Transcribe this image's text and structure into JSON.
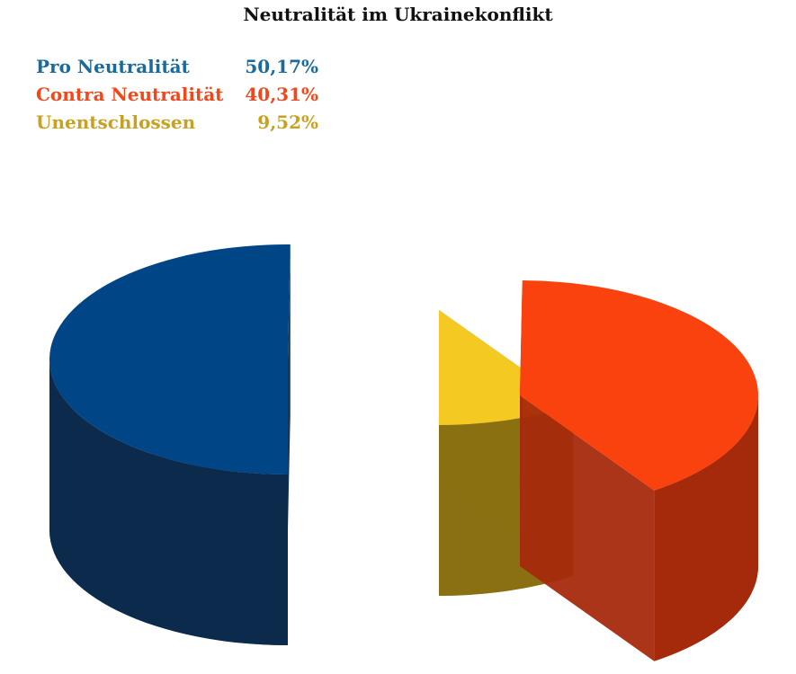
{
  "chart_data": {
    "type": "pie",
    "title": "Neutralität im Ukrainekonflikt",
    "series": [
      {
        "name": "Pro Neutralität",
        "label": "50,17%",
        "value": 50.17,
        "color": "#004585",
        "side_color": "#0b2a4c",
        "legend_color": "#1a6a9a"
      },
      {
        "name": "Contra Neutralität",
        "label": "40,31%",
        "value": 40.31,
        "color": "#fa420f",
        "side_color": "#a52a0c",
        "legend_color": "#f2461b"
      },
      {
        "name": "Unentschlossen",
        "label": "9,52%",
        "value": 9.52,
        "color": "#f4ca22",
        "side_color": "#8a7012",
        "legend_color": "#c9a020"
      }
    ],
    "legend_position": "top-left",
    "style": "3d-exploded"
  }
}
